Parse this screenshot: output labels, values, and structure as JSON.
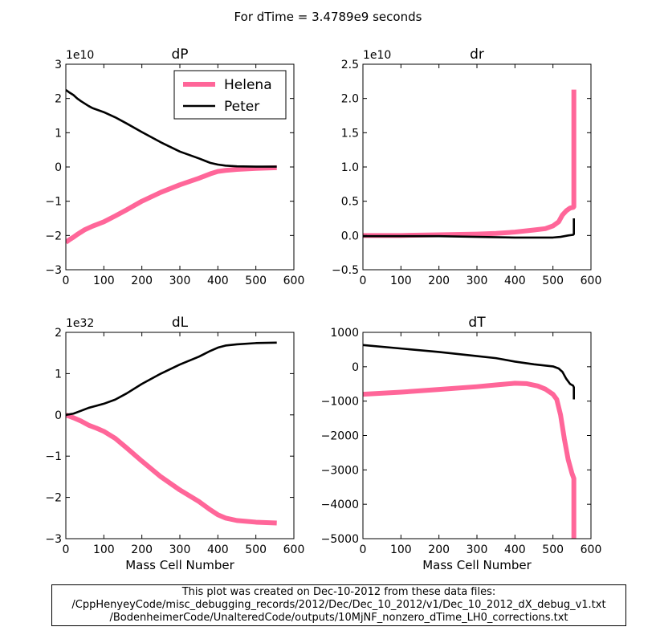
{
  "figure_title": "For dTime = 3.4789e9 seconds",
  "colors": {
    "helena": "#ff6699",
    "peter": "#000000"
  },
  "legend": {
    "helena": "Helena",
    "peter": "Peter",
    "placement": "upper-right of dP panel"
  },
  "caption": {
    "line1": "This plot was created on Dec-10-2012 from these data files:",
    "line2": "/CppHenyeyCode/misc_debugging_records/2012/Dec/Dec_10_2012/v1/Dec_10_2012_dX_debug_v1.txt",
    "line3": "/BodenheimerCode/UnalteredCode/outputs/10MjNF_nonzero_dTime_LH0_corrections.txt"
  },
  "chart_data": [
    {
      "type": "line",
      "title": "dP",
      "xlabel": "",
      "ylabel": "",
      "offset_text": "1e10",
      "xlim": [
        0,
        600
      ],
      "ylim": [
        -3,
        3
      ],
      "xticks": [
        0,
        100,
        200,
        300,
        400,
        500,
        600
      ],
      "yticks": [
        -3,
        -2,
        -1,
        0,
        1,
        2,
        3
      ],
      "ytick_labels": [
        "−3",
        "−2",
        "−1",
        "0",
        "1",
        "2",
        "3"
      ],
      "grid": false,
      "series": [
        {
          "name": "Helena",
          "color": "#ff6699",
          "x": [
            0,
            10,
            20,
            30,
            40,
            50,
            60,
            70,
            100,
            130,
            160,
            200,
            250,
            300,
            350,
            380,
            400,
            420,
            450,
            500,
            555
          ],
          "y": [
            -2.2,
            -2.12,
            -2.05,
            -1.97,
            -1.9,
            -1.83,
            -1.78,
            -1.73,
            -1.6,
            -1.43,
            -1.25,
            -1.0,
            -0.74,
            -0.52,
            -0.33,
            -0.2,
            -0.13,
            -0.1,
            -0.07,
            -0.04,
            -0.02
          ]
        },
        {
          "name": "Peter",
          "color": "#000000",
          "x": [
            0,
            10,
            20,
            30,
            40,
            50,
            60,
            70,
            100,
            130,
            160,
            200,
            250,
            300,
            350,
            380,
            400,
            420,
            450,
            500,
            555
          ],
          "y": [
            2.25,
            2.17,
            2.1,
            2.0,
            1.92,
            1.85,
            1.78,
            1.72,
            1.6,
            1.45,
            1.27,
            1.02,
            0.72,
            0.45,
            0.25,
            0.12,
            0.07,
            0.04,
            0.02,
            0.01,
            0.01
          ]
        }
      ]
    },
    {
      "type": "line",
      "title": "dr",
      "xlabel": "",
      "ylabel": "",
      "offset_text": "1e10",
      "xlim": [
        0,
        600
      ],
      "ylim": [
        -0.5,
        2.5
      ],
      "xticks": [
        0,
        100,
        200,
        300,
        400,
        500,
        600
      ],
      "yticks": [
        -0.5,
        0.0,
        0.5,
        1.0,
        1.5,
        2.0,
        2.5
      ],
      "ytick_labels": [
        "−0.5",
        "0.0",
        "0.5",
        "1.0",
        "1.5",
        "2.0",
        "2.5"
      ],
      "grid": false,
      "series": [
        {
          "name": "Helena",
          "color": "#ff6699",
          "x": [
            0,
            100,
            200,
            300,
            350,
            400,
            450,
            480,
            500,
            515,
            525,
            535,
            545,
            553,
            555,
            555
          ],
          "y": [
            0.0,
            0.0,
            0.01,
            0.02,
            0.03,
            0.05,
            0.08,
            0.1,
            0.14,
            0.2,
            0.3,
            0.36,
            0.4,
            0.41,
            0.42,
            2.13
          ]
        },
        {
          "name": "Peter",
          "color": "#000000",
          "x": [
            0,
            100,
            200,
            300,
            400,
            450,
            500,
            520,
            530,
            540,
            553,
            555,
            555
          ],
          "y": [
            -0.01,
            -0.01,
            -0.01,
            -0.02,
            -0.03,
            -0.03,
            -0.03,
            -0.02,
            -0.01,
            0.0,
            0.01,
            0.02,
            0.25
          ]
        }
      ]
    },
    {
      "type": "line",
      "title": "dL",
      "xlabel": "Mass Cell Number",
      "ylabel": "",
      "offset_text": "1e32",
      "xlim": [
        0,
        600
      ],
      "ylim": [
        -3,
        2
      ],
      "xticks": [
        0,
        100,
        200,
        300,
        400,
        500,
        600
      ],
      "yticks": [
        -3,
        -2,
        -1,
        0,
        1,
        2
      ],
      "ytick_labels": [
        "−3",
        "−2",
        "−1",
        "0",
        "1",
        "2"
      ],
      "grid": false,
      "series": [
        {
          "name": "Helena",
          "color": "#ff6699",
          "x": [
            0,
            20,
            40,
            60,
            80,
            100,
            130,
            160,
            200,
            250,
            300,
            350,
            380,
            400,
            420,
            450,
            500,
            555
          ],
          "y": [
            0.0,
            -0.07,
            -0.15,
            -0.25,
            -0.32,
            -0.4,
            -0.57,
            -0.8,
            -1.12,
            -1.5,
            -1.82,
            -2.1,
            -2.3,
            -2.42,
            -2.5,
            -2.56,
            -2.6,
            -2.62
          ]
        },
        {
          "name": "Peter",
          "color": "#000000",
          "x": [
            0,
            20,
            40,
            60,
            80,
            100,
            130,
            160,
            200,
            250,
            300,
            350,
            380,
            400,
            420,
            450,
            500,
            555
          ],
          "y": [
            0.0,
            0.03,
            0.1,
            0.17,
            0.22,
            0.27,
            0.37,
            0.52,
            0.75,
            1.0,
            1.22,
            1.41,
            1.55,
            1.63,
            1.68,
            1.71,
            1.74,
            1.75
          ]
        }
      ]
    },
    {
      "type": "line",
      "title": "dT",
      "xlabel": "Mass Cell Number",
      "ylabel": "",
      "offset_text": "",
      "xlim": [
        0,
        600
      ],
      "ylim": [
        -5000,
        1000
      ],
      "xticks": [
        0,
        100,
        200,
        300,
        400,
        500,
        600
      ],
      "yticks": [
        -5000,
        -4000,
        -3000,
        -2000,
        -1000,
        0,
        1000
      ],
      "ytick_labels": [
        "−5000",
        "−4000",
        "−3000",
        "−2000",
        "−1000",
        "0",
        "1000"
      ],
      "grid": false,
      "series": [
        {
          "name": "Helena",
          "color": "#ff6699",
          "x": [
            0,
            100,
            200,
            300,
            350,
            400,
            430,
            460,
            480,
            500,
            510,
            520,
            530,
            540,
            550,
            555,
            555
          ],
          "y": [
            -800,
            -740,
            -660,
            -580,
            -530,
            -480,
            -490,
            -560,
            -650,
            -800,
            -950,
            -1400,
            -2100,
            -2700,
            -3100,
            -3250,
            -5000
          ]
        },
        {
          "name": "Peter",
          "color": "#000000",
          "x": [
            0,
            100,
            200,
            300,
            350,
            400,
            450,
            500,
            515,
            525,
            535,
            545,
            553,
            555,
            555
          ],
          "y": [
            630,
            530,
            430,
            310,
            250,
            150,
            70,
            10,
            -50,
            -150,
            -350,
            -500,
            -550,
            -600,
            -950
          ]
        }
      ]
    }
  ]
}
